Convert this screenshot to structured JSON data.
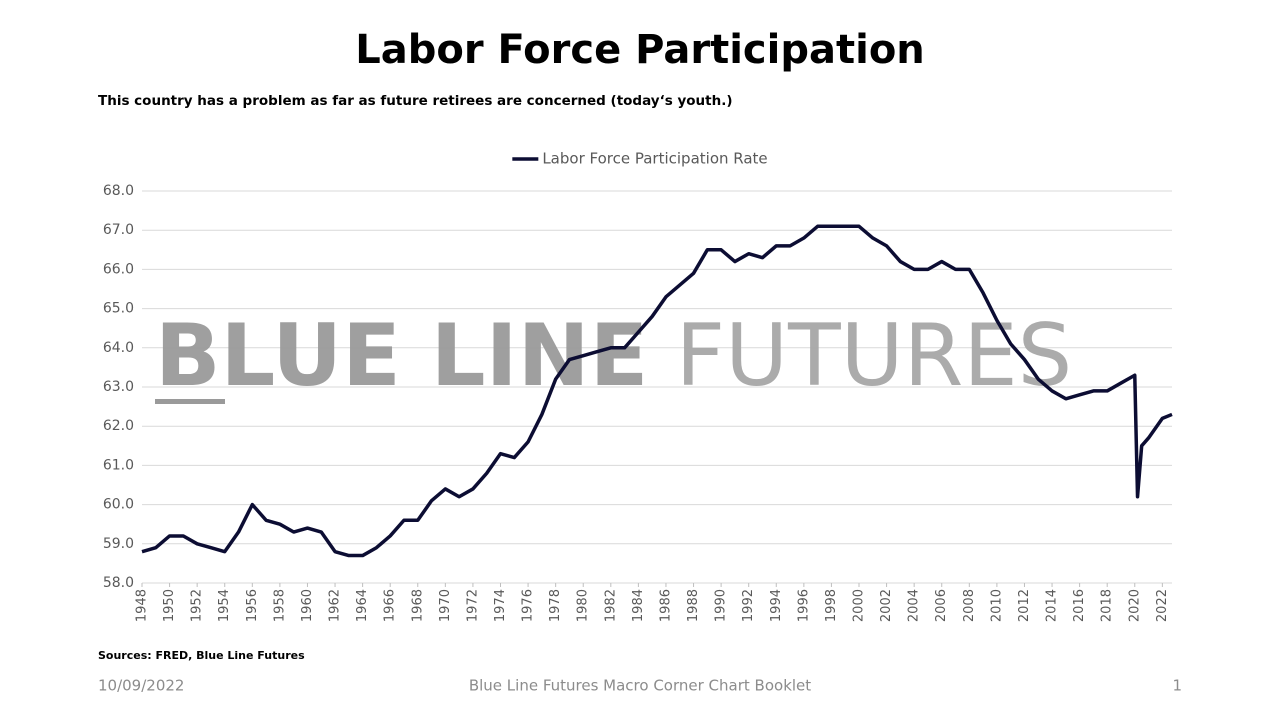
{
  "chart_data": {
    "type": "line",
    "title": "Labor Force Participation",
    "subtitle": "This country has a problem as far as future retirees are concerned (today‘s youth.)",
    "watermark": {
      "bold": "BLUE LINE",
      "light": "FUTURES"
    },
    "x": [
      1948,
      1949,
      1950,
      1951,
      1952,
      1953,
      1954,
      1955,
      1956,
      1957,
      1958,
      1959,
      1960,
      1961,
      1962,
      1963,
      1964,
      1965,
      1966,
      1967,
      1968,
      1969,
      1970,
      1971,
      1972,
      1973,
      1974,
      1975,
      1976,
      1977,
      1978,
      1979,
      1980,
      1981,
      1982,
      1983,
      1984,
      1985,
      1986,
      1987,
      1988,
      1989,
      1990,
      1991,
      1992,
      1993,
      1994,
      1995,
      1996,
      1997,
      1998,
      1999,
      2000,
      2001,
      2002,
      2003,
      2004,
      2005,
      2006,
      2007,
      2008,
      2009,
      2010,
      2011,
      2012,
      2013,
      2014,
      2015,
      2016,
      2017,
      2018,
      2019,
      2020,
      2020.2,
      2020.5,
      2021,
      2022,
      2022.7
    ],
    "series": [
      {
        "name": "Labor Force Participation Rate",
        "color": "#0c0d33",
        "values": [
          58.8,
          58.9,
          59.2,
          59.2,
          59.0,
          58.9,
          58.8,
          59.3,
          60.0,
          59.6,
          59.5,
          59.3,
          59.4,
          59.3,
          58.8,
          58.7,
          58.7,
          58.9,
          59.2,
          59.6,
          59.6,
          60.1,
          60.4,
          60.2,
          60.4,
          60.8,
          61.3,
          61.2,
          61.6,
          62.3,
          63.2,
          63.7,
          63.8,
          63.9,
          64.0,
          64.0,
          64.4,
          64.8,
          65.3,
          65.6,
          65.9,
          66.5,
          66.5,
          66.2,
          66.4,
          66.3,
          66.6,
          66.6,
          66.8,
          67.1,
          67.1,
          67.1,
          67.1,
          66.8,
          66.6,
          66.2,
          66.0,
          66.0,
          66.2,
          66.0,
          66.0,
          65.4,
          64.7,
          64.1,
          63.7,
          63.2,
          62.9,
          62.7,
          62.8,
          62.9,
          62.9,
          63.1,
          63.3,
          60.2,
          61.5,
          61.7,
          62.2,
          62.3
        ]
      }
    ],
    "xlim": [
      1948,
      2022.7
    ],
    "xticks": [
      1948,
      1950,
      1952,
      1954,
      1956,
      1958,
      1960,
      1962,
      1964,
      1966,
      1968,
      1970,
      1972,
      1974,
      1976,
      1978,
      1980,
      1982,
      1984,
      1986,
      1988,
      1990,
      1992,
      1994,
      1996,
      1998,
      2000,
      2002,
      2004,
      2006,
      2008,
      2010,
      2012,
      2014,
      2016,
      2018,
      2020,
      2022
    ],
    "ylim": [
      58,
      68
    ],
    "yticks": [
      {
        "value": 58,
        "label": "58.0"
      },
      {
        "value": 59,
        "label": "59.0"
      },
      {
        "value": 60,
        "label": "60.0"
      },
      {
        "value": 61,
        "label": "61.0"
      },
      {
        "value": 62,
        "label": "62.0"
      },
      {
        "value": 63,
        "label": "63.0"
      },
      {
        "value": 64,
        "label": "64.0"
      },
      {
        "value": 65,
        "label": "65.0"
      },
      {
        "value": 66,
        "label": "66.0"
      },
      {
        "value": 67,
        "label": "67.0"
      },
      {
        "value": 68,
        "label": "68.0"
      }
    ],
    "grid": true,
    "legend": "top"
  },
  "footer": {
    "sources": "Sources: FRED, Blue Line Futures",
    "date": "10/09/2022",
    "booklet": "Blue Line Futures Macro Corner Chart Booklet",
    "page": "1"
  }
}
